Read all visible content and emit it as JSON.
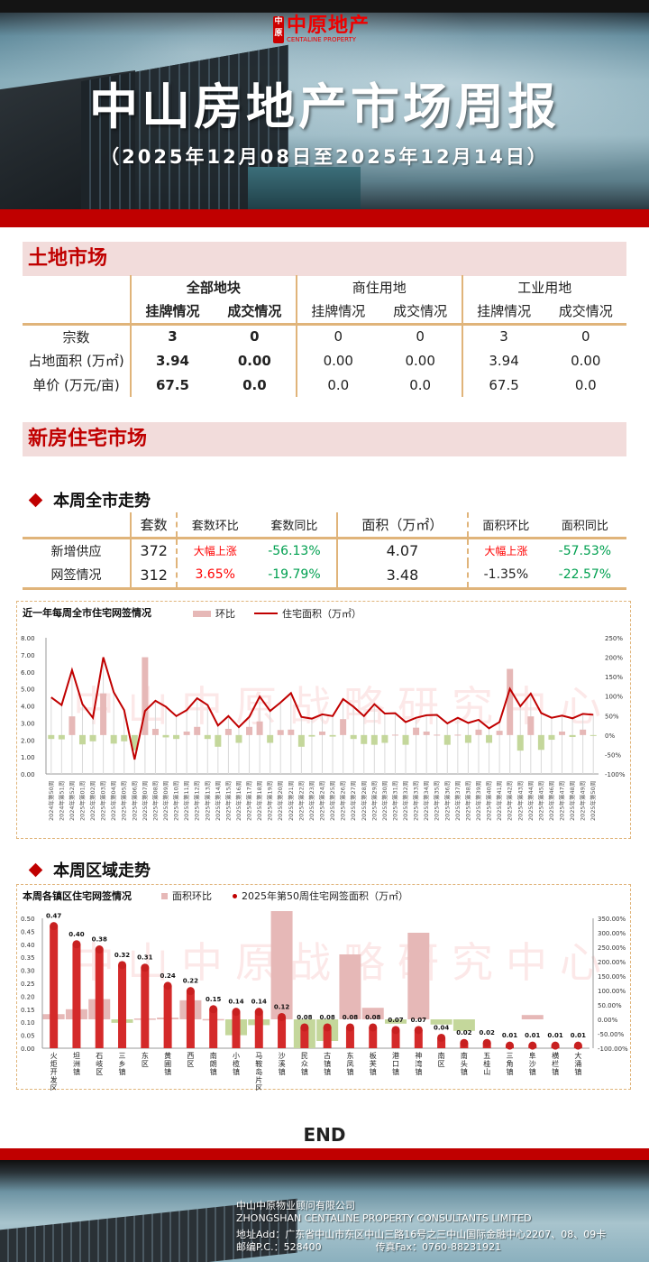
{
  "header": {
    "logo_seal": "中原",
    "logo_cn": "中原地产",
    "logo_en": "CENTALINE PROPERTY",
    "title": "中山房地产市场周报",
    "subtitle": "（2025年12月08日至2025年12月14日）"
  },
  "land_market": {
    "section_title": "土地市场",
    "group_headers": [
      "全部地块",
      "商住用地",
      "工业用地"
    ],
    "sub_headers": [
      "挂牌情况",
      "成交情况",
      "挂牌情况",
      "成交情况",
      "挂牌情况",
      "成交情况"
    ],
    "rows": [
      {
        "label": "宗数",
        "values": [
          "3",
          "0",
          "0",
          "0",
          "3",
          "0"
        ]
      },
      {
        "label": "占地面积 (万㎡)",
        "values": [
          "3.94",
          "0.00",
          "0.00",
          "0.00",
          "3.94",
          "0.00"
        ]
      },
      {
        "label": "单价 (万元/亩)",
        "values": [
          "67.5",
          "0.0",
          "0.0",
          "0.0",
          "67.5",
          "0.0"
        ]
      }
    ]
  },
  "new_housing": {
    "section_title": "新房住宅市场",
    "weekly_title": "本周全市走势",
    "weekly_headers": [
      "套数",
      "套数环比",
      "套数同比",
      "面积（万㎡）",
      "面积环比",
      "面积同比"
    ],
    "weekly_rows": [
      {
        "label": "新增供应",
        "values": [
          "372",
          "大幅上涨",
          "-56.13%",
          "4.07",
          "大幅上涨",
          "-57.53%"
        ]
      },
      {
        "label": "网签情况",
        "values": [
          "312",
          "3.65%",
          "-19.79%",
          "3.48",
          "-1.35%",
          "-22.57%"
        ]
      }
    ],
    "regional_title": "本周区域走势"
  },
  "colors": {
    "brand_red": "#c00000",
    "section_bg": "#f2dcdb",
    "table_line": "#e0b47a",
    "up_red": "#ff0000",
    "down_green": "#00a050",
    "bar_pos": "#e6b8b7",
    "bar_neg": "#c4d79b",
    "line": "#c00000"
  },
  "watermark": "中山中原战略研究中心",
  "chart_data": [
    {
      "type": "bar+line",
      "title": "近一年每周全市住宅网签情况",
      "legend": [
        "环比",
        "住宅面积（万㎡）"
      ],
      "categories": [
        "2024年第50周",
        "2024年第51周",
        "2024年第52周",
        "2025年第01周",
        "2025年第02周",
        "2025年第03周",
        "2025年第04周",
        "2025年第05周",
        "2025年第06周",
        "2025年第07周",
        "2025年第08周",
        "2025年第09周",
        "2025年第10周",
        "2025年第11周",
        "2025年第12周",
        "2025年第13周",
        "2025年第14周",
        "2025年第15周",
        "2025年第16周",
        "2025年第17周",
        "2025年第18周",
        "2025年第19周",
        "2025年第20周",
        "2025年第21周",
        "2025年第22周",
        "2025年第23周",
        "2025年第24周",
        "2025年第25周",
        "2025年第26周",
        "2025年第27周",
        "2025年第28周",
        "2025年第29周",
        "2025年第30周",
        "2025年第31周",
        "2025年第32周",
        "2025年第33周",
        "2025年第34周",
        "2025年第35周",
        "2025年第36周",
        "2025年第37周",
        "2025年第38周",
        "2025年第39周",
        "2025年第40周",
        "2025年第41周",
        "2025年第42周",
        "2025年第43周",
        "2025年第44周",
        "2025年第45周",
        "2025年第46周",
        "2025年第47周",
        "2025年第48周",
        "2025年第49周",
        "2025年第50周"
      ],
      "series": [
        {
          "name": "住宅面积（万㎡）",
          "axis": "left",
          "type": "line",
          "values": [
            4.5,
            4.05,
            6.1,
            4.1,
            3.3,
            6.85,
            4.8,
            3.75,
            0.85,
            3.7,
            4.3,
            3.95,
            3.4,
            3.75,
            4.45,
            4.05,
            2.85,
            3.4,
            2.75,
            3.35,
            4.55,
            3.7,
            4.2,
            4.75,
            3.35,
            3.25,
            3.5,
            3.4,
            4.4,
            3.95,
            3.4,
            4.1,
            3.55,
            3.57,
            3.05,
            3.3,
            3.45,
            3.47,
            2.97,
            3.3,
            3.0,
            3.18,
            2.68,
            3.05,
            5.0,
            3.98,
            4.72,
            3.58,
            3.3,
            3.43,
            3.27,
            3.53,
            3.48
          ]
        },
        {
          "name": "环比",
          "axis": "right",
          "type": "bar",
          "unit": "%",
          "values": [
            -10,
            -11,
            48,
            -24,
            -16,
            107,
            -22,
            -16,
            -39,
            200,
            16,
            -6,
            -10,
            9,
            21,
            -10,
            -30,
            16,
            -20,
            21,
            35,
            -20,
            13,
            14,
            -30,
            -4,
            9,
            -4,
            41,
            -10,
            -23,
            -25,
            -20,
            1,
            -25,
            19,
            9,
            1,
            -25,
            1,
            -20,
            14,
            -20,
            11,
            170,
            -40,
            48,
            -38,
            -12,
            9,
            -5,
            14,
            -1
          ]
        }
      ],
      "left_axis": {
        "ylim": [
          0,
          8
        ],
        "ticks": [
          "0.00",
          "1.00",
          "2.00",
          "3.00",
          "4.00",
          "5.00",
          "6.00",
          "7.00",
          "8.00"
        ]
      },
      "right_axis": {
        "ylim": [
          -100,
          250
        ],
        "ticks": [
          "-100%",
          "-50%",
          "0%",
          "50%",
          "100%",
          "150%",
          "200%",
          "250%"
        ]
      },
      "grid": false,
      "legend_position": "top"
    },
    {
      "type": "bar",
      "title": "本周各镇区住宅网签情况",
      "legend": [
        "面积环比",
        "2025年第50周住宅网签面积（万㎡）"
      ],
      "categories": [
        "火炬开发区",
        "坦洲镇",
        "石岐区",
        "三乡镇",
        "东区",
        "黄圃镇",
        "西区",
        "南朗镇",
        "小榄镇",
        "马鞍岛片区",
        "沙溪镇",
        "民众镇",
        "古镇镇",
        "东凤镇",
        "板芙镇",
        "港口镇",
        "神湾镇",
        "南区",
        "南头镇",
        "五桂山",
        "三角镇",
        "阜沙镇",
        "横栏镇",
        "大涌镇"
      ],
      "series": [
        {
          "name": "2025年第50周住宅网签面积（万㎡）",
          "axis": "left",
          "values": [
            0.47,
            0.4,
            0.38,
            0.32,
            0.31,
            0.24,
            0.22,
            0.15,
            0.14,
            0.14,
            0.12,
            0.08,
            0.08,
            0.08,
            0.08,
            0.07,
            0.07,
            0.04,
            0.02,
            0.02,
            0.01,
            0.01,
            0.01,
            0.01
          ],
          "labels": [
            "0.47",
            "0.40",
            "0.38",
            "0.32",
            "0.31",
            "0.24",
            "0.22",
            "0.15",
            "0.14",
            "0.14",
            "0.12",
            "0.08",
            "0.08",
            "0.08",
            "0.08",
            "0.07",
            "0.07",
            "0.04",
            "0.02",
            "0.02",
            "0.01",
            "0.01",
            "0.01",
            "0.01"
          ]
        },
        {
          "name": "面积环比",
          "axis": "right",
          "unit": "%",
          "values": [
            18,
            35,
            70,
            -12,
            3,
            6,
            66,
            1,
            -55,
            -20,
            375,
            -100,
            -75,
            225,
            40,
            -15,
            300,
            -18,
            -40,
            null,
            null,
            15,
            null,
            null
          ]
        }
      ],
      "left_axis": {
        "ylim": [
          0,
          0.5
        ],
        "ticks": [
          "0.00",
          "0.05",
          "0.10",
          "0.15",
          "0.20",
          "0.25",
          "0.30",
          "0.35",
          "0.40",
          "0.45",
          "0.50"
        ]
      },
      "right_axis": {
        "ylim": [
          -100,
          350
        ],
        "ticks": [
          "-100.00%",
          "-50.00%",
          "0.00%",
          "50.00%",
          "100.00%",
          "150.00%",
          "200.00%",
          "250.00%",
          "300.00%",
          "350.00%"
        ]
      }
    }
  ],
  "end_label": "END",
  "footer": {
    "company_cn": "中山中原物业顾问有限公司",
    "company_en": "ZHONGSHAN CENTALINE PROPERTY CONSULTANTS LIMITED",
    "address": "地址Add：广东省中山市东区中山三路16号之三中山国际金融中心2207、08、09卡",
    "postcode": "邮编P.C.：528400",
    "fax": "传真Fax：0760-88231921"
  }
}
